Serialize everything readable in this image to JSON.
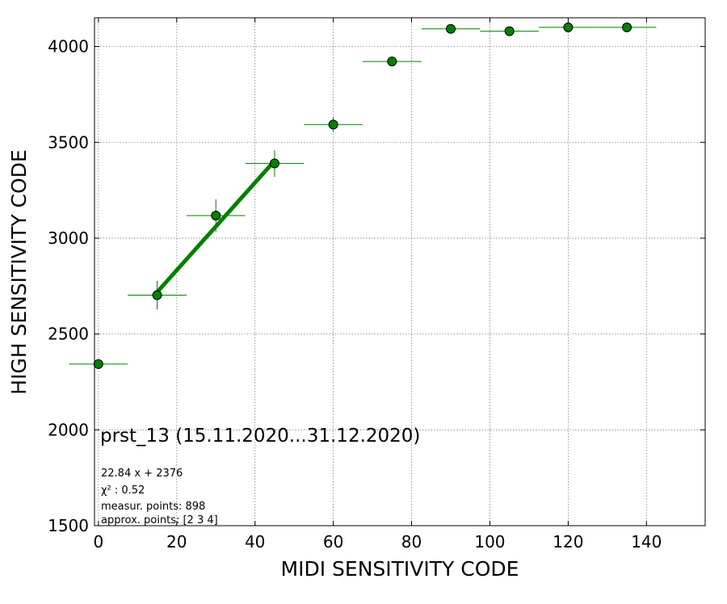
{
  "chart_data": {
    "type": "scatter",
    "title": "",
    "xlabel": "MIDI SENSITIVITY CODE",
    "ylabel": "HIGH SENSITIVITY CODE",
    "xlim": [
      -1,
      155
    ],
    "ylim": [
      1500,
      4150
    ],
    "xticks": [
      0,
      20,
      40,
      60,
      80,
      100,
      120,
      140
    ],
    "yticks": [
      1500,
      2000,
      2500,
      3000,
      3500,
      4000
    ],
    "grid": true,
    "points": [
      {
        "x": 0,
        "y": 2343,
        "xerr": 7.5,
        "yerr": 20
      },
      {
        "x": 15,
        "y": 2703,
        "xerr": 7.5,
        "yerr": 75
      },
      {
        "x": 30,
        "y": 3118,
        "xerr": 7.5,
        "yerr": 85
      },
      {
        "x": 45,
        "y": 3390,
        "xerr": 7.5,
        "yerr": 70
      },
      {
        "x": 60,
        "y": 3593,
        "xerr": 7.5,
        "yerr": 40
      },
      {
        "x": 75,
        "y": 3922,
        "xerr": 7.5,
        "yerr": 25
      },
      {
        "x": 90,
        "y": 4092,
        "xerr": 7.5,
        "yerr": 10
      },
      {
        "x": 105,
        "y": 4080,
        "xerr": 7.5,
        "yerr": 10
      },
      {
        "x": 120,
        "y": 4100,
        "xerr": 7.5,
        "yerr": 10
      },
      {
        "x": 135,
        "y": 4100,
        "xerr": 7.5,
        "yerr": 10
      }
    ],
    "fit": {
      "slope": 22.84,
      "intercept": 2376,
      "x_range": [
        15,
        45
      ]
    },
    "annotations": {
      "main": "prst_13 (15.11.2020...31.12.2020)",
      "equation": "22.84 x + 2376",
      "chi2_label": "χ² : 0.52",
      "measur_points": "measur. points: 898",
      "approx_points": "approx. points: [2 3 4]"
    },
    "colors": {
      "marker_fill": "#008000",
      "marker_edge": "#000000",
      "errorbar": "#008000",
      "fit_line": "#008000",
      "grid": "#808080"
    }
  }
}
